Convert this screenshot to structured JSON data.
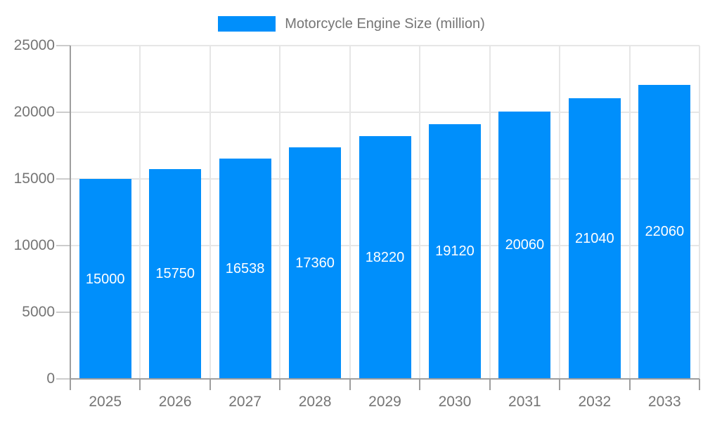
{
  "chart_data": {
    "type": "bar",
    "legend": "Motorcycle Engine Size (million)",
    "categories": [
      "2025",
      "2026",
      "2027",
      "2028",
      "2029",
      "2030",
      "2031",
      "2032",
      "2033"
    ],
    "values": [
      15000,
      15750,
      16538,
      17360,
      18220,
      19120,
      20060,
      21040,
      22060
    ],
    "ylim": [
      0,
      25000
    ],
    "yticks": [
      0,
      5000,
      10000,
      15000,
      20000,
      25000
    ],
    "grid": true,
    "legend_position": "top-center",
    "value_label_position": "inside-center",
    "colors": {
      "bar": "#008FFB",
      "value_label": "#ffffff",
      "axis_label": "#757575",
      "axis_line": "#9e9e9e",
      "gridline": "#e6e6e6"
    }
  }
}
